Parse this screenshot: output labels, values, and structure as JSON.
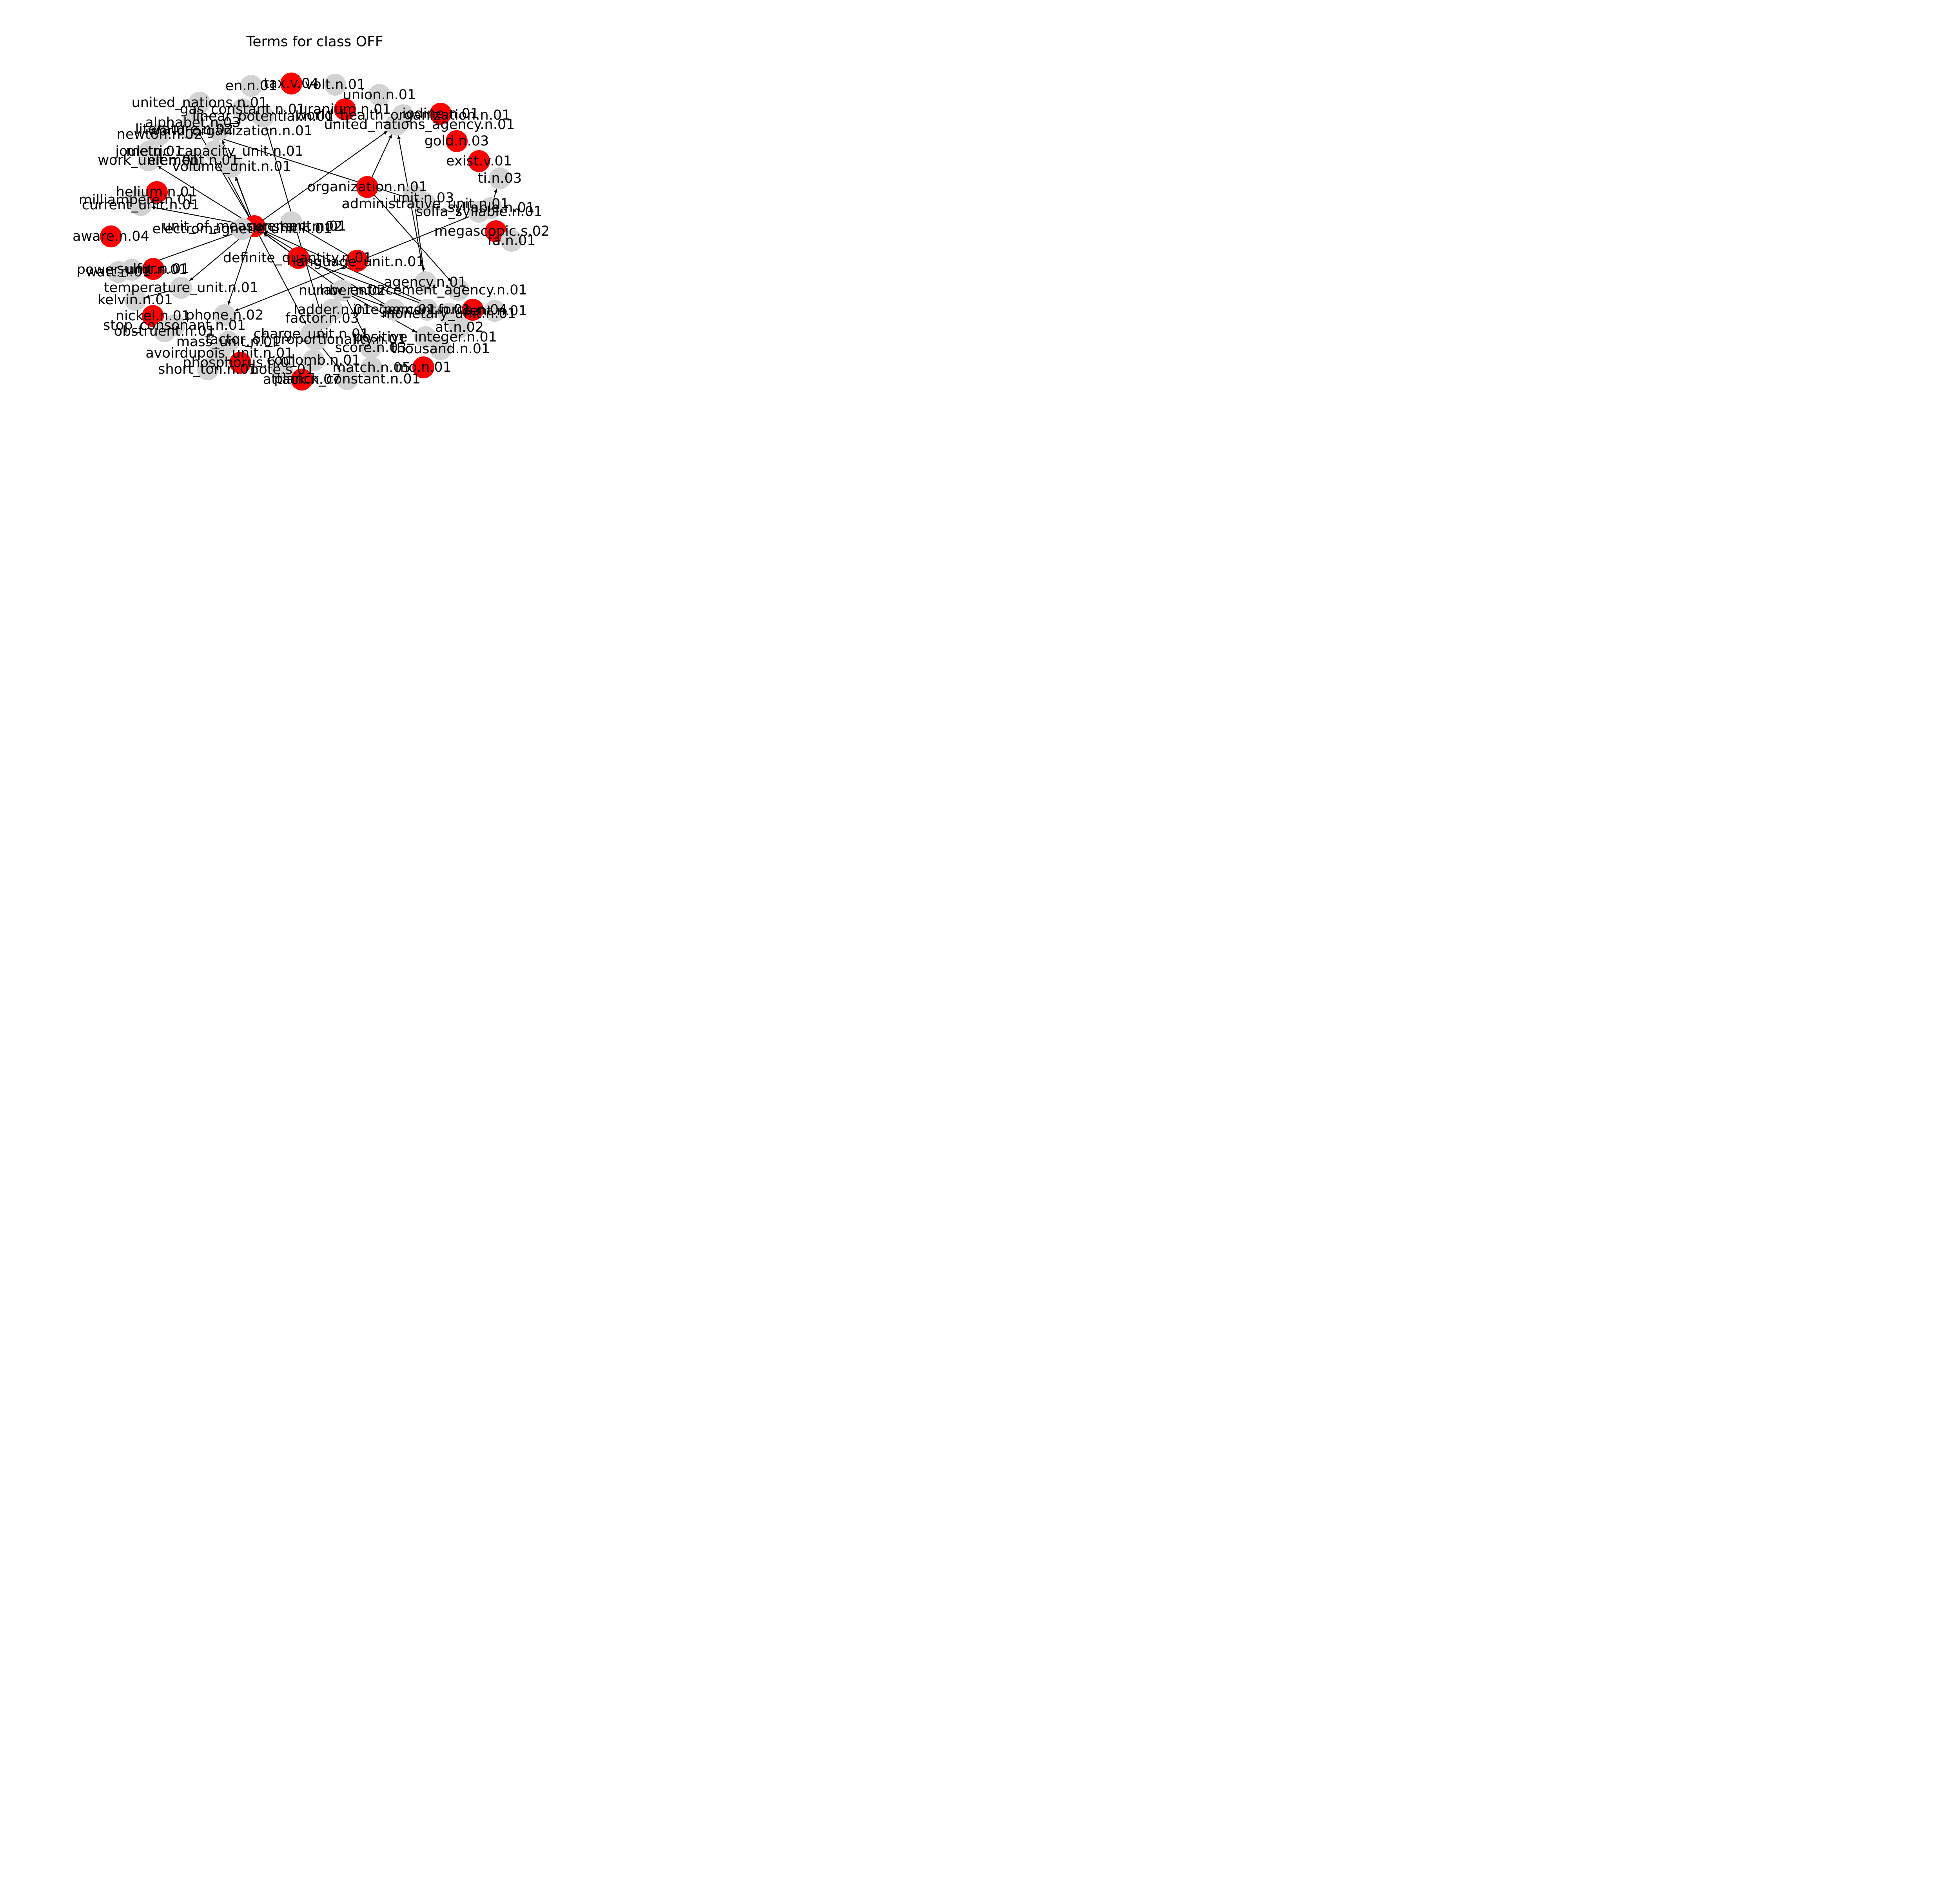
{
  "title": "Terms for class OFF",
  "colors": {
    "highlight": "#ff0000",
    "normal": "#d3d3d3",
    "edge": "#000000"
  },
  "nodes": [
    {
      "id": "tax.v.04",
      "label": "tax.v.04",
      "hl": true
    },
    {
      "id": "en.n.01",
      "label": "en.n.01",
      "hl": false
    },
    {
      "id": "volt.n.01",
      "label": "volt.n.01",
      "hl": false
    },
    {
      "id": "union.n.01",
      "label": "union.n.01",
      "hl": false
    },
    {
      "id": "united_nations.n.01",
      "label": "united_nations.n.01",
      "hl": false
    },
    {
      "id": "gas_constant.n.01",
      "label": "gas_constant.n.01",
      "hl": false
    },
    {
      "id": "uranium.n.01",
      "label": "uranium.n.01",
      "hl": true
    },
    {
      "id": "world_health_organization.n.01",
      "label": "world_health_organization.n.01",
      "hl": false
    },
    {
      "id": "iodine.n.01",
      "label": "iodine.n.01",
      "hl": true
    },
    {
      "id": "linear_potential.n.01",
      "label": "linear_potential.n.01",
      "hl": false
    },
    {
      "id": "alphabet.n.03",
      "label": "alphabet.n.03",
      "hl": false
    },
    {
      "id": "literature.n.02",
      "label": "literature.n.02",
      "hl": false
    },
    {
      "id": "united_nations_agency.n.01",
      "label": "united_nations_agency.n.01",
      "hl": false
    },
    {
      "id": "world_organization.n.01",
      "label": "world_organization.n.01",
      "hl": false
    },
    {
      "id": "gold.n.03",
      "label": "gold.n.03",
      "hl": true
    },
    {
      "id": "newton.n.02",
      "label": "newton.n.02",
      "hl": false
    },
    {
      "id": "exist.v.01",
      "label": "exist.v.01",
      "hl": true
    },
    {
      "id": "metric_capacity_unit.n.01",
      "label": "metric_capacity_unit.n.01",
      "hl": false
    },
    {
      "id": "joule.n.01",
      "label": "joule.n.01",
      "hl": false
    },
    {
      "id": "work_unit.n.01",
      "label": "work_unit.n.01",
      "hl": false
    },
    {
      "id": "element.n.01",
      "label": "element.n.01",
      "hl": false
    },
    {
      "id": "volume_unit.n.01",
      "label": "volume_unit.n.01",
      "hl": false
    },
    {
      "id": "ti.n.03",
      "label": "ti.n.03",
      "hl": false
    },
    {
      "id": "organization.n.01",
      "label": "organization.n.01",
      "hl": true
    },
    {
      "id": "helium.n.01",
      "label": "helium.n.01",
      "hl": true
    },
    {
      "id": "unit.n.03",
      "label": "unit.n.03",
      "hl": false
    },
    {
      "id": "milliampere.n.01",
      "label": "milliampere.n.01",
      "hl": false
    },
    {
      "id": "administrative_unit.n.01",
      "label": "administrative_unit.n.01",
      "hl": false
    },
    {
      "id": "syllable.n.01",
      "label": "syllable.n.01",
      "hl": false
    },
    {
      "id": "current_unit.n.01",
      "label": "current_unit.n.01",
      "hl": false
    },
    {
      "id": "solfa_syllable.n.01",
      "label": "solfa_syllable.n.01",
      "hl": false
    },
    {
      "id": "unit_of_measurement.n.01",
      "label": "unit_of_measurement.n.01",
      "hl": true
    },
    {
      "id": "constant.n.02",
      "label": "constant.n.02",
      "hl": false
    },
    {
      "id": "electromagnetic_unit.n.01",
      "label": "electromagnetic_unit.n.01",
      "hl": false
    },
    {
      "id": "megascopic.s.02",
      "label": "megascopic.s.02",
      "hl": true
    },
    {
      "id": "aware.n.04",
      "label": "aware.n.04",
      "hl": true
    },
    {
      "id": "fa.n.01",
      "label": "fa.n.01",
      "hl": false
    },
    {
      "id": "definite_quantity.n.01",
      "label": "definite_quantity.n.01",
      "hl": true
    },
    {
      "id": "language_unit.n.01",
      "label": "language_unit.n.01",
      "hl": true
    },
    {
      "id": "power_unit.n.01",
      "label": "power_unit.n.01",
      "hl": false
    },
    {
      "id": "sulfur.n.01",
      "label": "sulfur.n.01",
      "hl": true
    },
    {
      "id": "watt.n.01",
      "label": "watt.n.01",
      "hl": false
    },
    {
      "id": "agency.n.01",
      "label": "agency.n.01",
      "hl": false
    },
    {
      "id": "temperature_unit.n.01",
      "label": "temperature_unit.n.01",
      "hl": false
    },
    {
      "id": "law_enforcement_agency.n.01",
      "label": "law_enforcement_agency.n.01",
      "hl": false
    },
    {
      "id": "number.n.02",
      "label": "number.n.02",
      "hl": false
    },
    {
      "id": "force.n.04",
      "label": "force.n.04",
      "hl": true
    },
    {
      "id": "kelvin.n.01",
      "label": "kelvin.n.01",
      "hl": false
    },
    {
      "id": "ladder.n.01",
      "label": "ladder.n.01",
      "hl": false
    },
    {
      "id": "integer.n.01",
      "label": "integer.n.01",
      "hl": false
    },
    {
      "id": "percent.n.01",
      "label": "percent.n.01",
      "hl": false
    },
    {
      "id": "monetary_unit.n.01",
      "label": "monetary_unit.n.01",
      "hl": false
    },
    {
      "id": "cent.n.01",
      "label": "cent.n.01",
      "hl": false
    },
    {
      "id": "nickel.n.01",
      "label": "nickel.n.01",
      "hl": true
    },
    {
      "id": "phone.n.02",
      "label": "phone.n.02",
      "hl": false
    },
    {
      "id": "factor.n.03",
      "label": "factor.n.03",
      "hl": false
    },
    {
      "id": "at.n.02",
      "label": "at.n.02",
      "hl": false
    },
    {
      "id": "stop_consonant.n.01",
      "label": "stop_consonant.n.01",
      "hl": false
    },
    {
      "id": "obstruent.n.01",
      "label": "obstruent.n.01",
      "hl": false
    },
    {
      "id": "charge_unit.n.01",
      "label": "charge_unit.n.01",
      "hl": false
    },
    {
      "id": "factor_of_proportionality.n.01",
      "label": "factor_of_proportionality.n.01",
      "hl": false
    },
    {
      "id": "mass_unit.n.01",
      "label": "mass_unit.n.01",
      "hl": false
    },
    {
      "id": "positive_integer.n.01",
      "label": "positive_integer.n.01",
      "hl": false
    },
    {
      "id": "score.n.03",
      "label": "score.n.03",
      "hl": false
    },
    {
      "id": "thousand.n.01",
      "label": "thousand.n.01",
      "hl": false
    },
    {
      "id": "avoirdupois_unit.n.01",
      "label": "avoirdupois_unit.n.01",
      "hl": false
    },
    {
      "id": "phosphorus.n.01",
      "label": "phosphorus.n.01",
      "hl": true
    },
    {
      "id": "coulomb.n.01",
      "label": "coulomb.n.01",
      "hl": false
    },
    {
      "id": "short_ton.n.01",
      "label": "short_ton.n.01",
      "hl": false
    },
    {
      "id": "note.s.01",
      "label": "note.s.01",
      "hl": false
    },
    {
      "id": "match.n.05",
      "label": "match.n.05",
      "hl": false
    },
    {
      "id": "mo.n.01",
      "label": "mo.n.01",
      "hl": true
    },
    {
      "id": "planck_constant.n.01",
      "label": "planck_constant.n.01",
      "hl": false
    },
    {
      "id": "attack.n.07",
      "label": "attack.n.07",
      "hl": true
    }
  ],
  "edges": [
    [
      "unit_of_measurement.n.01",
      "world_organization.n.01"
    ],
    [
      "unit_of_measurement.n.01",
      "work_unit.n.01"
    ],
    [
      "unit_of_measurement.n.01",
      "volume_unit.n.01"
    ],
    [
      "unit_of_measurement.n.01",
      "metric_capacity_unit.n.01"
    ],
    [
      "unit_of_measurement.n.01",
      "alphabet.n.03"
    ],
    [
      "unit_of_measurement.n.01",
      "united_nations_agency.n.01"
    ],
    [
      "unit_of_measurement.n.01",
      "current_unit.n.01"
    ],
    [
      "unit_of_measurement.n.01",
      "temperature_unit.n.01"
    ],
    [
      "unit_of_measurement.n.01",
      "phone.n.02"
    ],
    [
      "unit_of_measurement.n.01",
      "charge_unit.n.01"
    ],
    [
      "unit_of_measurement.n.01",
      "power_unit.n.01"
    ],
    [
      "definite_quantity.n.01",
      "unit_of_measurement.n.01"
    ],
    [
      "number.n.02",
      "unit_of_measurement.n.01"
    ],
    [
      "monetary_unit.n.01",
      "unit_of_measurement.n.01"
    ],
    [
      "integer.n.01",
      "unit_of_measurement.n.01"
    ],
    [
      "literature.n.02",
      "administrative_unit.n.01"
    ],
    [
      "factor.n.03",
      "linear_potential.n.01"
    ],
    [
      "organization.n.01",
      "united_nations_agency.n.01"
    ],
    [
      "organization.n.01",
      "law_enforcement_agency.n.01"
    ],
    [
      "agency.n.01",
      "united_nations_agency.n.01"
    ],
    [
      "unit.n.03",
      "agency.n.01"
    ],
    [
      "syllable.n.01",
      "phone.n.02"
    ],
    [
      "syllable.n.01",
      "ti.n.03"
    ],
    [
      "temperature_unit.n.01",
      "kelvin.n.01"
    ],
    [
      "number.n.02",
      "integer.n.01"
    ],
    [
      "number.n.02",
      "positive_integer.n.01"
    ],
    [
      "number.n.02",
      "score.n.03"
    ],
    [
      "number.n.02",
      "factor_of_proportionality.n.01"
    ],
    [
      "language_unit.n.01",
      "constant.n.02"
    ],
    [
      "definite_quantity.n.01",
      "monetary_unit.n.01"
    ],
    [
      "factor_of_proportionality.n.01",
      "planck_constant.n.01"
    ],
    [
      "charge_unit.n.01",
      "coulomb.n.01"
    ]
  ]
}
